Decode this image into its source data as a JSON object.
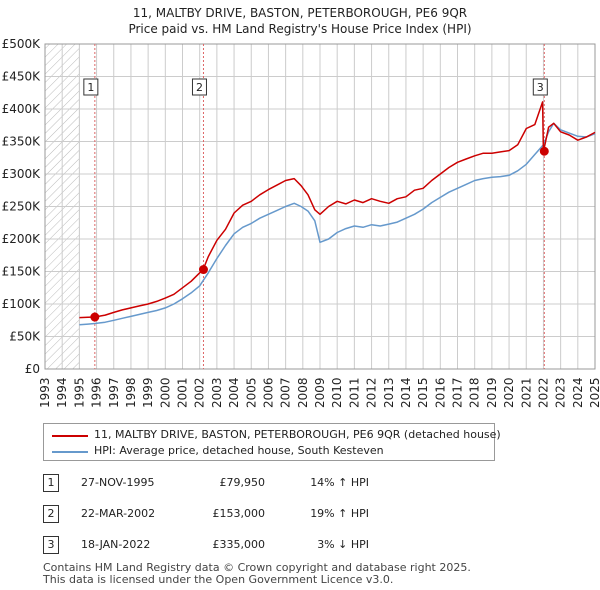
{
  "title_line1": "11, MALTBY DRIVE, BASTON, PETERBOROUGH, PE6 9QR",
  "title_line2": "Price paid vs. HM Land Registry's House Price Index (HPI)",
  "colors": {
    "property": "#cc0000",
    "hpi": "#6699cc",
    "marker_line": "#dd6666",
    "grid": "#cccccc",
    "hatch": "#bbbbbb"
  },
  "chart_data": {
    "type": "line",
    "title": "Price paid vs. HM Land Registry's House Price Index (HPI)",
    "xlabel": "",
    "ylabel": "",
    "xlim": [
      1993,
      2025
    ],
    "ylim": [
      0,
      500000
    ],
    "y_ticks": [
      0,
      50000,
      100000,
      150000,
      200000,
      250000,
      300000,
      350000,
      400000,
      450000,
      500000
    ],
    "y_tick_labels": [
      "£0",
      "£50K",
      "£100K",
      "£150K",
      "£200K",
      "£250K",
      "£300K",
      "£350K",
      "£400K",
      "£450K",
      "£500K"
    ],
    "x_ticks": [
      1993,
      1994,
      1995,
      1996,
      1997,
      1998,
      1999,
      2000,
      2001,
      2002,
      2003,
      2004,
      2005,
      2006,
      2007,
      2008,
      2009,
      2010,
      2011,
      2012,
      2013,
      2014,
      2015,
      2016,
      2017,
      2018,
      2019,
      2020,
      2021,
      2022,
      2023,
      2024,
      2025
    ],
    "x_tick_labels": [
      "1993",
      "1994",
      "1995",
      "1996",
      "1997",
      "1998",
      "1999",
      "2000",
      "2001",
      "2002",
      "2003",
      "2004",
      "2005",
      "2006",
      "2007",
      "2008",
      "2009",
      "2010",
      "2011",
      "2012",
      "2013",
      "2014",
      "2015",
      "2016",
      "2017",
      "2018",
      "2019",
      "2020",
      "2021",
      "2022",
      "2023",
      "2024",
      "2025"
    ],
    "hatched_region": [
      1993,
      1995
    ],
    "series": [
      {
        "name": "11, MALTBY DRIVE, BASTON, PETERBOROUGH, PE6 9QR (detached house)",
        "color": "#cc0000",
        "x": [
          1995.0,
          1995.5,
          1995.9,
          1996.5,
          1997.0,
          1997.5,
          1998.0,
          1998.5,
          1999.0,
          1999.5,
          2000.0,
          2000.5,
          2001.0,
          2001.5,
          2002.0,
          2002.2,
          2002.5,
          2003.0,
          2003.5,
          2004.0,
          2004.5,
          2005.0,
          2005.5,
          2006.0,
          2006.5,
          2007.0,
          2007.5,
          2007.9,
          2008.3,
          2008.7,
          2009.0,
          2009.5,
          2010.0,
          2010.5,
          2011.0,
          2011.5,
          2012.0,
          2012.5,
          2013.0,
          2013.5,
          2014.0,
          2014.5,
          2015.0,
          2015.5,
          2016.0,
          2016.5,
          2017.0,
          2017.5,
          2018.0,
          2018.5,
          2019.0,
          2019.5,
          2020.0,
          2020.5,
          2021.0,
          2021.5,
          2021.95,
          2022.0,
          2022.1,
          2022.3,
          2022.6,
          2023.0,
          2023.5,
          2024.0,
          2024.5,
          2025.0
        ],
        "values": [
          79000,
          79500,
          79950,
          83000,
          87000,
          91000,
          94000,
          97000,
          100000,
          104000,
          109000,
          115000,
          125000,
          135000,
          148000,
          153000,
          173000,
          198000,
          215000,
          240000,
          252000,
          258000,
          268000,
          276000,
          283000,
          290000,
          293000,
          282000,
          268000,
          245000,
          238000,
          250000,
          258000,
          254000,
          260000,
          256000,
          262000,
          258000,
          255000,
          262000,
          265000,
          275000,
          278000,
          290000,
          300000,
          310000,
          318000,
          323000,
          328000,
          332000,
          332000,
          334000,
          336000,
          345000,
          370000,
          376000,
          411000,
          335000,
          347000,
          372000,
          378000,
          365000,
          360000,
          352000,
          357000,
          364000
        ]
      },
      {
        "name": "HPI: Average price, detached house, South Kesteven",
        "color": "#6699cc",
        "x": [
          1995.0,
          1995.5,
          1995.9,
          1996.5,
          1997.0,
          1997.5,
          1998.0,
          1998.5,
          1999.0,
          1999.5,
          2000.0,
          2000.5,
          2001.0,
          2001.5,
          2002.0,
          2002.5,
          2003.0,
          2003.5,
          2004.0,
          2004.5,
          2005.0,
          2005.5,
          2006.0,
          2006.5,
          2007.0,
          2007.5,
          2007.9,
          2008.3,
          2008.7,
          2009.0,
          2009.5,
          2010.0,
          2010.5,
          2011.0,
          2011.5,
          2012.0,
          2012.5,
          2013.0,
          2013.5,
          2014.0,
          2014.5,
          2015.0,
          2015.5,
          2016.0,
          2016.5,
          2017.0,
          2017.5,
          2018.0,
          2018.5,
          2019.0,
          2019.5,
          2020.0,
          2020.5,
          2021.0,
          2021.5,
          2022.0,
          2022.3,
          2022.6,
          2023.0,
          2023.5,
          2024.0,
          2024.5,
          2025.0
        ],
        "values": [
          68000,
          69000,
          70000,
          72000,
          75000,
          78000,
          81000,
          84000,
          87000,
          90000,
          94000,
          100000,
          108000,
          117000,
          128000,
          148000,
          170000,
          190000,
          208000,
          218000,
          224000,
          232000,
          238000,
          244000,
          250000,
          255000,
          250000,
          243000,
          228000,
          195000,
          200000,
          210000,
          216000,
          220000,
          218000,
          222000,
          220000,
          223000,
          226000,
          232000,
          238000,
          246000,
          256000,
          264000,
          272000,
          278000,
          284000,
          290000,
          293000,
          295000,
          296000,
          298000,
          305000,
          315000,
          330000,
          345000,
          365000,
          378000,
          368000,
          363000,
          358000,
          357000,
          362000
        ]
      }
    ],
    "transactions": [
      {
        "id": "1",
        "x": 1995.9,
        "value": 79950
      },
      {
        "id": "2",
        "x": 2002.22,
        "value": 153000
      },
      {
        "id": "3",
        "x": 2022.05,
        "value": 335000
      }
    ],
    "legend_position": "bottom"
  },
  "legend": {
    "property_label": "11, MALTBY DRIVE, BASTON, PETERBOROUGH, PE6 9QR (detached house)",
    "hpi_label": "HPI: Average price, detached house, South Kesteven"
  },
  "transactions_table": [
    {
      "num": "1",
      "date": "27-NOV-1995",
      "price": "£79,950",
      "hpi": "14% ↑ HPI"
    },
    {
      "num": "2",
      "date": "22-MAR-2002",
      "price": "£153,000",
      "hpi": "19% ↑ HPI"
    },
    {
      "num": "3",
      "date": "18-JAN-2022",
      "price": "£335,000",
      "hpi": "3% ↓ HPI"
    }
  ],
  "footer_line1": "Contains HM Land Registry data © Crown copyright and database right 2025.",
  "footer_line2": "This data is licensed under the Open Government Licence v3.0."
}
